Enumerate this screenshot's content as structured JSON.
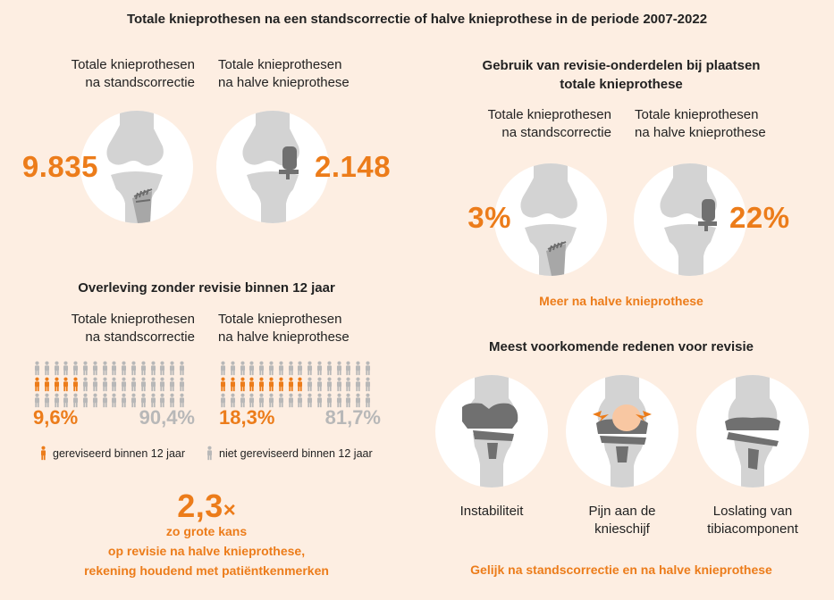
{
  "main_title": "Totale knieprothesen na een standscorrectie of halve knieprothese in de periode 2007-2022",
  "counts": {
    "left_label_line1": "Totale knieprothesen",
    "left_label_line2": "na standscorrectie",
    "right_label_line1": "Totale knieprothesen",
    "right_label_line2": "na halve knieprothese",
    "left_value": "9.835",
    "right_value": "2.148"
  },
  "revision_parts": {
    "title_line1": "Gebruik van revisie-onderdelen bij plaatsen",
    "title_line2": "totale knieprothese",
    "left_label_line1": "Totale knieprothesen",
    "left_label_line2": "na standscorrectie",
    "right_label_line1": "Totale knieprothesen",
    "right_label_line2": "na halve knieprothese",
    "left_value": "3%",
    "right_value": "22%",
    "note": "Meer na halve knieprothese"
  },
  "survival": {
    "title": "Overleving zonder revisie binnen 12 jaar",
    "left_label_line1": "Totale knieprothesen",
    "left_label_line2": "na standscorrectie",
    "right_label_line1": "Totale knieprothesen",
    "right_label_line2": "na halve knieprothese",
    "left_revised": "9,6%",
    "left_not_revised": "90,4%",
    "right_revised": "18,3%",
    "right_not_revised": "81,7%",
    "left_revised_share": 0.096,
    "right_revised_share": 0.183,
    "legend_revised": "gereviseerd binnen 12 jaar",
    "legend_not_revised": "niet gereviseerd binnen 12 jaar"
  },
  "risk": {
    "factor": "2,3",
    "times_symbol": "×",
    "line1": "zo grote kans",
    "line2": "op revisie na halve knieprothese,",
    "line3": "rekening houdend met patiëntkenmerken"
  },
  "reasons": {
    "title": "Meest voorkomende redenen voor revisie",
    "items": [
      {
        "line1": "Instabiliteit",
        "line2": ""
      },
      {
        "line1": "Pijn aan de",
        "line2": "knieschijf"
      },
      {
        "line1": "Loslating van",
        "line2": "tibiacomponent"
      }
    ],
    "note": "Gelijk na standscorrectie en na halve knieprothese"
  },
  "colors": {
    "accent": "#ec7c1a",
    "background": "#fdeee2",
    "bone": "#d3d3d3",
    "implant": "#707070",
    "person_grey": "#b8b8b8"
  }
}
